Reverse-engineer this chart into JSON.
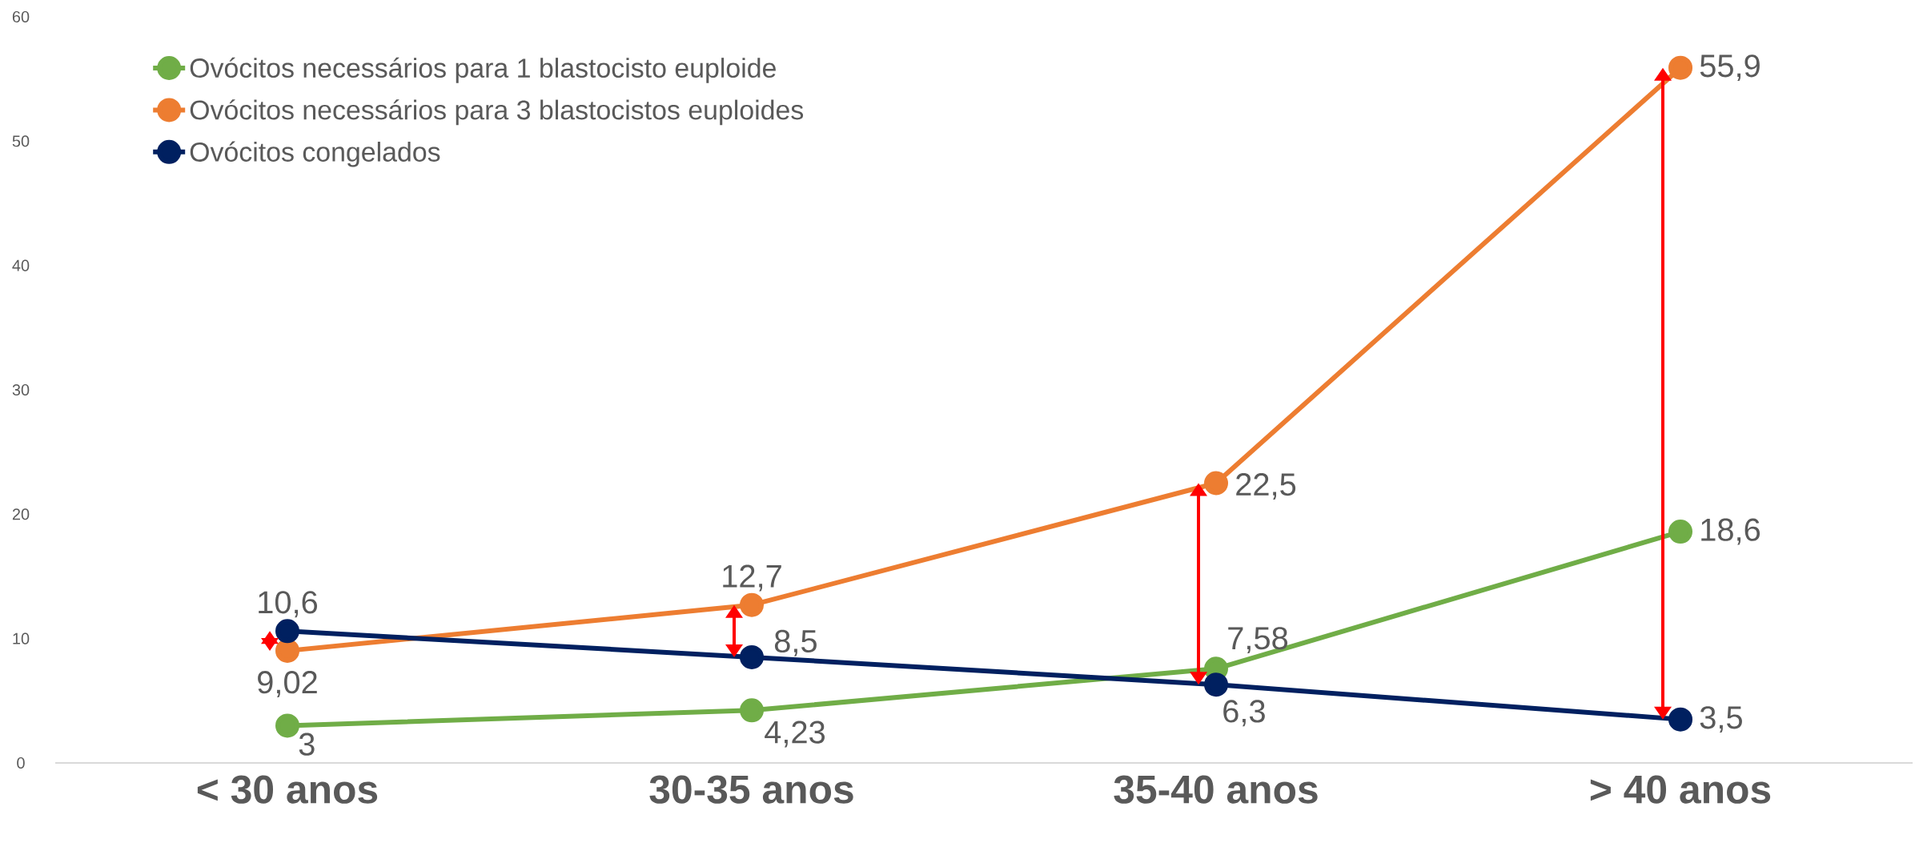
{
  "chart_data": {
    "type": "line",
    "categories": [
      "< 30 anos",
      "30-35 anos",
      "35-40 anos",
      "> 40 anos"
    ],
    "series": [
      {
        "name": "Ovócitos necessários para 1 blastocisto euploide",
        "color": "#70ad47",
        "values": [
          3,
          4.23,
          7.58,
          18.6
        ],
        "value_labels": [
          "3",
          "4,23",
          "7,58",
          "18,6"
        ]
      },
      {
        "name": "Ovócitos necessários para 3 blastocistos euploides",
        "color": "#ed7d31",
        "values": [
          9.02,
          12.7,
          22.5,
          55.9
        ],
        "value_labels": [
          "9,02",
          "12,7",
          "22,5",
          "55,9"
        ]
      },
      {
        "name": "Ovócitos congelados",
        "color": "#002060",
        "values": [
          10.6,
          8.5,
          6.3,
          3.5
        ],
        "value_labels": [
          "10,6",
          "8,5",
          "6,3",
          "3,5"
        ]
      }
    ],
    "ylim": [
      0,
      60
    ],
    "yticks": [
      0,
      10,
      20,
      30,
      40,
      50,
      60
    ],
    "legend": "top left",
    "marker": "circle",
    "line_style": "solid"
  }
}
